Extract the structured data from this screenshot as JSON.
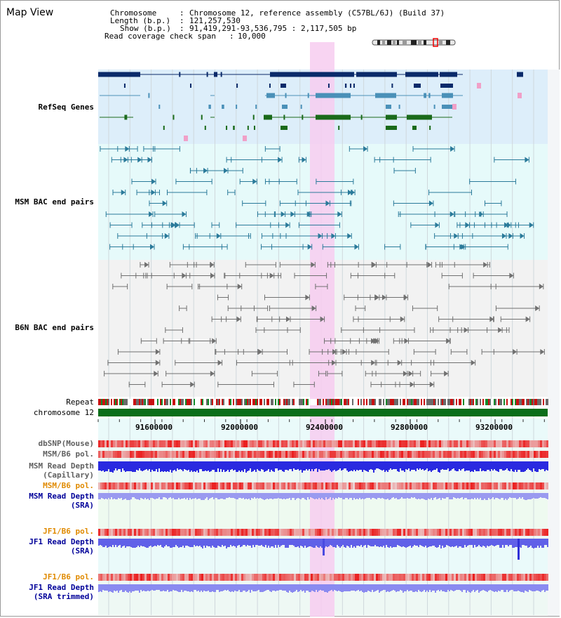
{
  "title": "Map View",
  "info": {
    "chromosome_key": "Chromosome",
    "chromosome_val": "Chromosome 12, reference assembly (C57BL/6J) (Build 37)",
    "length_key": "Length (b.p.)",
    "length_val": "121,257,530",
    "show_key": "Show (b.p.)",
    "show_val": "91,419,291-93,536,795 : 2,117,505 bp",
    "coverage_key": "Read coverage check span",
    "coverage_val": "10,000"
  },
  "tracks": {
    "refseq": "RefSeq Genes",
    "msm_bac": "MSM BAC end pairs",
    "b6n_bac": "B6N BAC end pairs",
    "repeat": "Repeat",
    "chromosome": "chromosome 12",
    "dbsnp": "dbSNP(Mouse)",
    "msm_b6_pol_1": "MSM/B6 pol.",
    "msm_depth_cap_1": "MSM Read Depth",
    "msm_depth_cap_2": "(Capillary)",
    "msm_b6_pol_2": "MSM/B6 pol.",
    "msm_depth_sra_1": "MSM Read Depth",
    "msm_depth_sra_2": "(SRA)",
    "jf1_b6_pol_1": "JF1/B6 pol.",
    "jf1_depth_sra_1": "JF1 Read Depth",
    "jf1_depth_sra_2": "(SRA)",
    "jf1_b6_pol_2": "JF1/B6 pol.",
    "jf1_depth_trim_1": "JF1 Read Depth",
    "jf1_depth_trim_2": "(SRA trimmed)"
  },
  "ruler": [
    "91600000",
    "92000000",
    "92400000",
    "92800000",
    "93200000"
  ],
  "colors": {
    "refseq_bg": "#ddeefa",
    "msm_bg": "#e6fafa",
    "b6n_bg": "#f2f2f2",
    "highlight": "#f7ccf0",
    "refseq_dark": "#0a2a6a",
    "refseq_mid": "#4a90b8",
    "refseq_green": "#1a6a1a",
    "msm_line": "#2a7a9a",
    "b6n_line": "#707070",
    "chromosome_bar": "#0b6e1a",
    "label_navy": "#000099",
    "label_teal": "#006680",
    "label_gray": "#606060",
    "label_orange": "#e08a00"
  }
}
